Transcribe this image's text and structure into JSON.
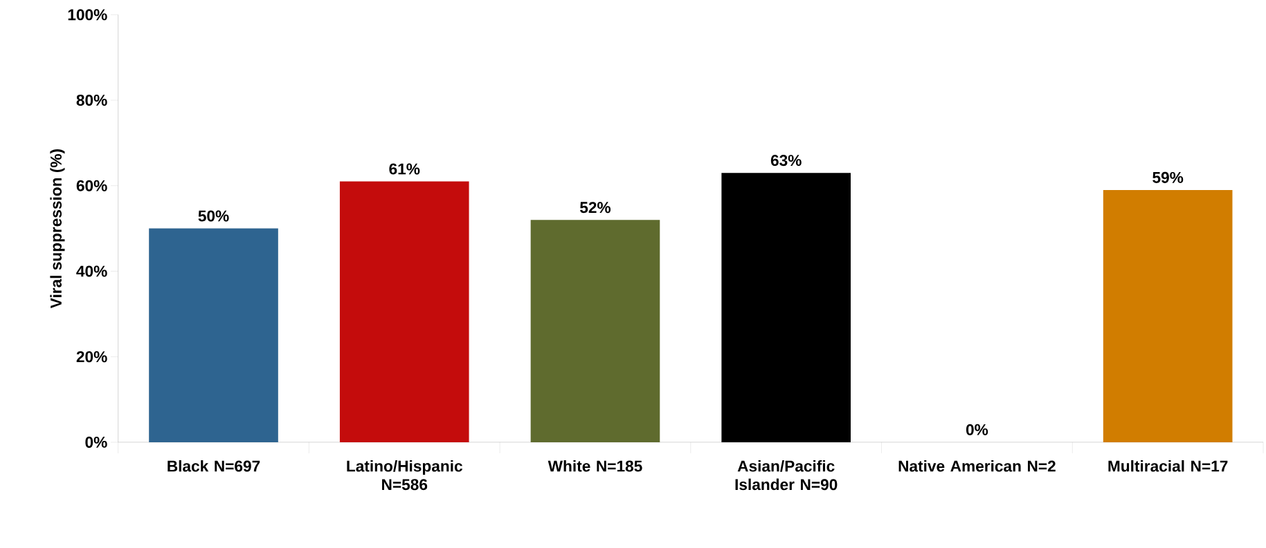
{
  "chart_data": {
    "type": "bar",
    "ylabel": "Viral suppression (%)",
    "categories": [
      "Black N=697",
      "Latino/Hispanic N=586",
      "White N=185",
      "Asian/Pacific Islander N=90",
      "Native American N=2",
      "Multiracial N=17"
    ],
    "values": [
      50,
      61,
      52,
      63,
      0,
      59
    ],
    "value_labels": [
      "50%",
      "61%",
      "52%",
      "63%",
      "0%",
      "59%"
    ],
    "colors": [
      "#2e6490",
      "#c40c0c",
      "#5f6b2e",
      "#000000",
      null,
      "#d17d00"
    ],
    "ylim": [
      0,
      100
    ],
    "yticks": [
      {
        "value": 0,
        "label": "0%"
      },
      {
        "value": 20,
        "label": "20%"
      },
      {
        "value": 40,
        "label": "40%"
      },
      {
        "value": 60,
        "label": "60%"
      },
      {
        "value": 80,
        "label": "80%"
      },
      {
        "value": 100,
        "label": "100%"
      }
    ],
    "grid": false
  }
}
